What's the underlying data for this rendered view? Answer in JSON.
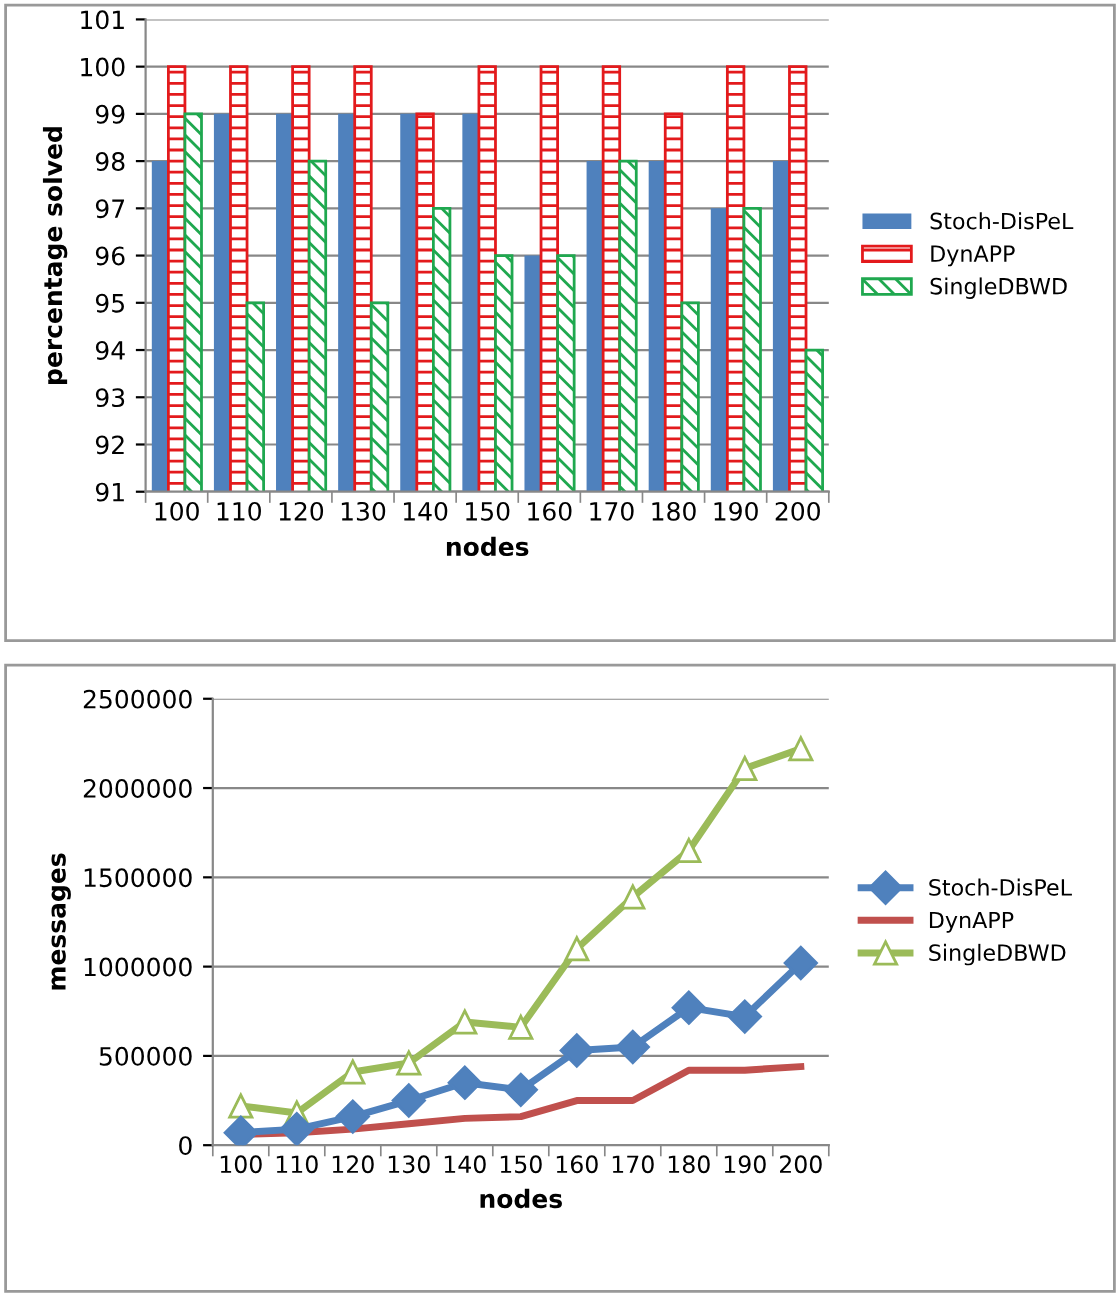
{
  "chart_data": [
    {
      "type": "bar",
      "xlabel": "nodes",
      "ylabel": "percentage solved",
      "categories": [
        "100",
        "110",
        "120",
        "130",
        "140",
        "150",
        "160",
        "170",
        "180",
        "190",
        "200"
      ],
      "series": [
        {
          "name": "Stoch-DisPeL",
          "color": "#4f81bd",
          "values": [
            98,
            99,
            99,
            99,
            99,
            99,
            96,
            98,
            98,
            97,
            98
          ]
        },
        {
          "name": "DynAPP",
          "color": "#e31a1c",
          "values": [
            100,
            100,
            100,
            100,
            99,
            100,
            100,
            100,
            99,
            100,
            100
          ]
        },
        {
          "name": "SingleDBWD",
          "color": "#1fa84f",
          "values": [
            99,
            95,
            98,
            95,
            97,
            96,
            96,
            98,
            95,
            97,
            94
          ]
        }
      ],
      "ylim": [
        91,
        101
      ],
      "yticks": [
        91,
        92,
        93,
        94,
        95,
        96,
        97,
        98,
        99,
        100,
        101
      ],
      "grid": "y",
      "legend": "right"
    },
    {
      "type": "line",
      "xlabel": "nodes",
      "ylabel": "messages",
      "categories": [
        "100",
        "110",
        "120",
        "130",
        "140",
        "150",
        "160",
        "170",
        "180",
        "190",
        "200"
      ],
      "series": [
        {
          "name": "Stoch-DisPeL",
          "color": "#4f81bd",
          "marker": "diamond",
          "values": [
            70000,
            90000,
            160000,
            250000,
            350000,
            310000,
            530000,
            550000,
            770000,
            720000,
            1020000
          ]
        },
        {
          "name": "DynAPP",
          "color": "#c0504d",
          "marker": "none",
          "values": [
            60000,
            70000,
            90000,
            120000,
            150000,
            160000,
            250000,
            250000,
            420000,
            420000,
            440000
          ]
        },
        {
          "name": "SingleDBWD",
          "color": "#9bbb59",
          "marker": "triangle",
          "values": [
            220000,
            180000,
            410000,
            460000,
            690000,
            660000,
            1100000,
            1390000,
            1650000,
            2110000,
            2220000
          ]
        }
      ],
      "ylim": [
        0,
        2500000
      ],
      "yticks": [
        0,
        500000,
        1000000,
        1500000,
        2000000,
        2500000
      ],
      "grid": "y",
      "legend": "right"
    }
  ]
}
